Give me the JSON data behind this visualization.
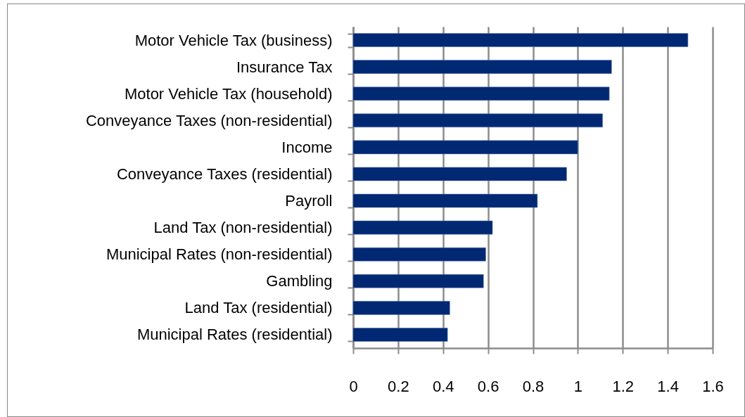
{
  "chart_data": {
    "type": "bar",
    "orientation": "horizontal",
    "categories": [
      "Motor Vehicle Tax (business)",
      "Insurance Tax",
      "Motor Vehicle Tax (household)",
      "Conveyance Taxes (non-residential)",
      "Income",
      "Conveyance Taxes (residential)",
      "Payroll",
      "Land Tax (non-residential)",
      "Municipal Rates (non-residential)",
      "Gambling",
      "Land Tax (residential)",
      "Municipal Rates (residential)"
    ],
    "values": [
      1.49,
      1.15,
      1.14,
      1.11,
      1.0,
      0.95,
      0.82,
      0.62,
      0.59,
      0.58,
      0.43,
      0.42
    ],
    "color": "#002873",
    "xlim": [
      0,
      1.6
    ],
    "xticks": [
      0,
      0.2,
      0.4,
      0.6,
      0.8,
      1,
      1.2,
      1.4,
      1.6
    ],
    "grid": "x"
  }
}
